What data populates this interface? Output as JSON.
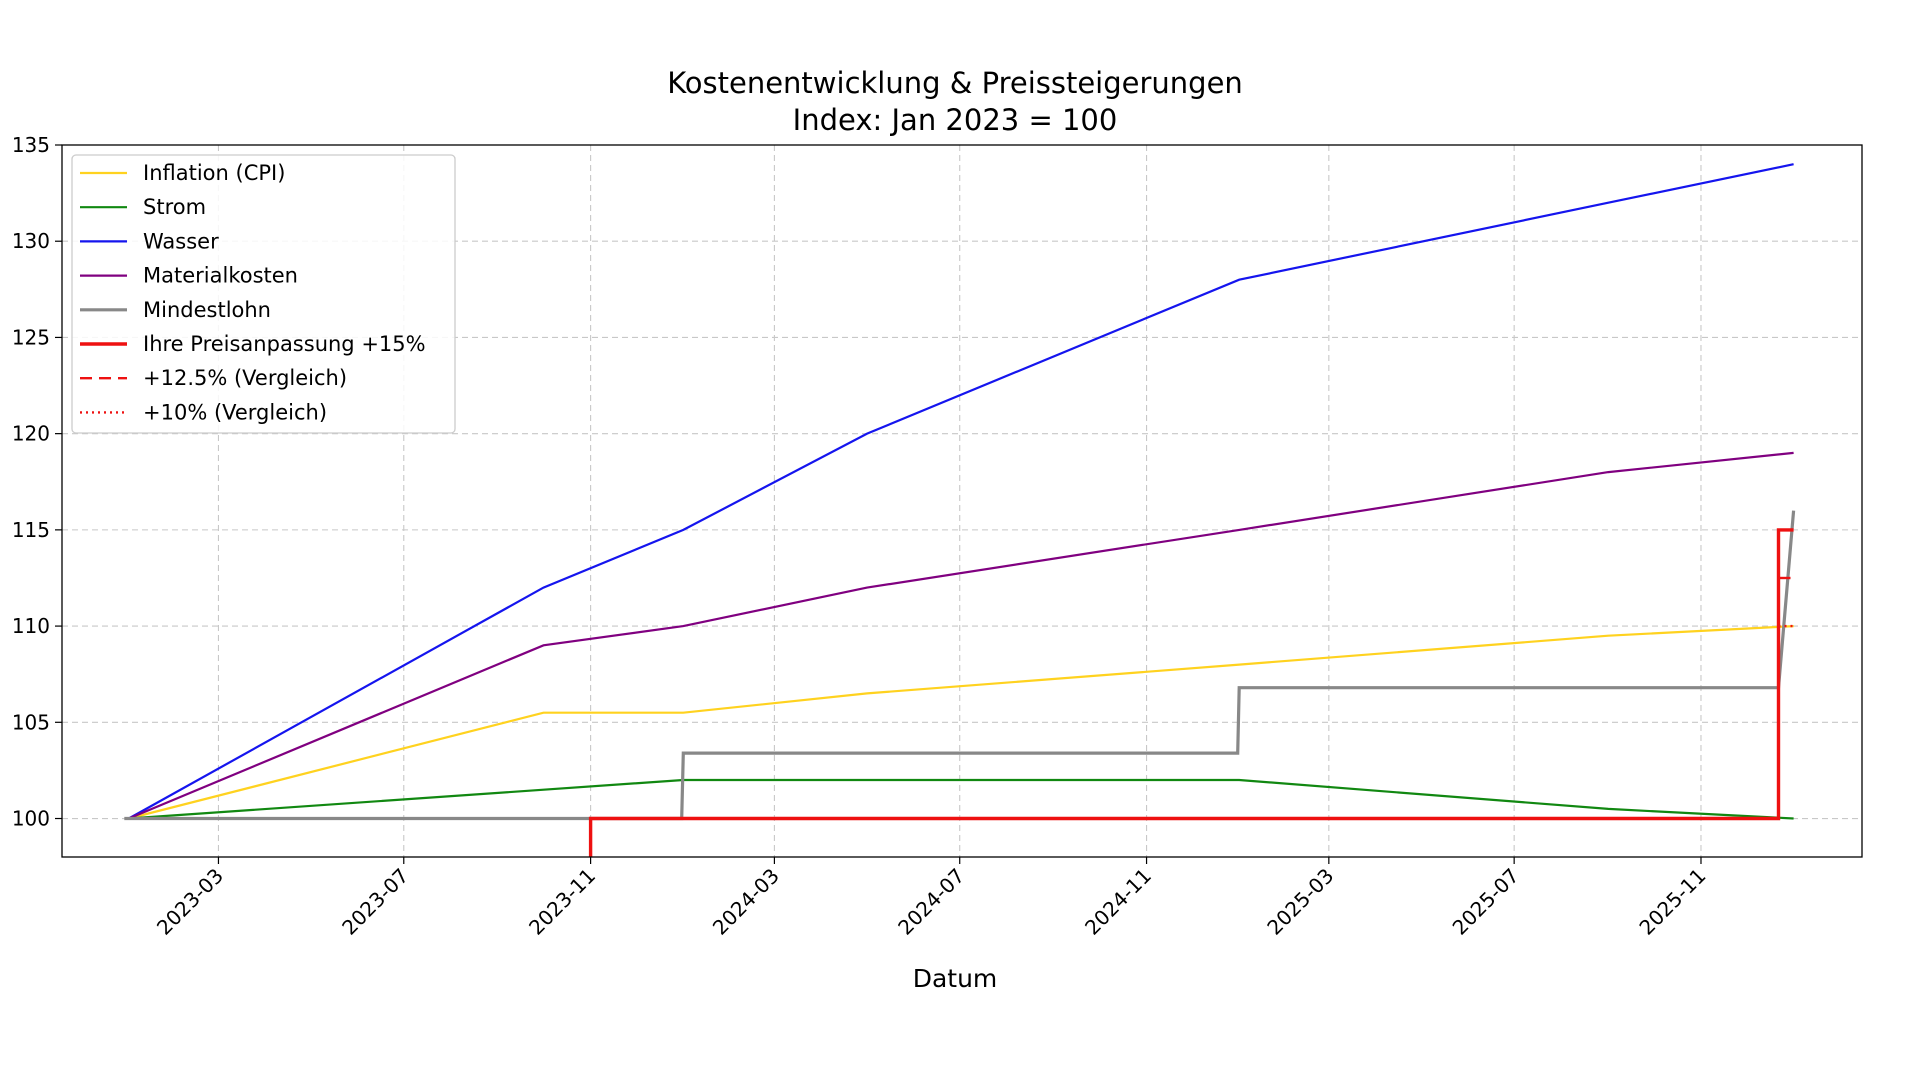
{
  "chart_data": {
    "type": "line",
    "title": "Kostenentwicklung & Preissteigerungen",
    "subtitle": "Index: Jan 2023 = 100",
    "xlabel": "Datum",
    "ylabel": "",
    "xlim": [
      "2022-11-18",
      "2026-02-15"
    ],
    "ylim": [
      98,
      135
    ],
    "grid": true,
    "grid_style": "dashed",
    "legend_position": "upper-left",
    "x_ticks": [
      "2023-03",
      "2023-07",
      "2023-11",
      "2024-03",
      "2024-07",
      "2024-11",
      "2025-03",
      "2025-07",
      "2025-11"
    ],
    "y_ticks": [
      100,
      105,
      110,
      115,
      120,
      125,
      130,
      135
    ],
    "series": [
      {
        "name": "Inflation (CPI)",
        "color": "#FFD21F",
        "width": 2.2,
        "dash": "solid",
        "points": [
          [
            "2023-01-01",
            100
          ],
          [
            "2023-10-01",
            105.5
          ],
          [
            "2024-01-01",
            105.5
          ],
          [
            "2024-05-01",
            106.5
          ],
          [
            "2025-01-01",
            108
          ],
          [
            "2025-09-01",
            109.5
          ],
          [
            "2026-01-01",
            110
          ]
        ]
      },
      {
        "name": "Strom",
        "color": "#118811",
        "width": 2.2,
        "dash": "solid",
        "points": [
          [
            "2023-01-01",
            100
          ],
          [
            "2024-01-01",
            102
          ],
          [
            "2025-01-01",
            102
          ],
          [
            "2025-09-01",
            100.5
          ],
          [
            "2026-01-01",
            100
          ]
        ]
      },
      {
        "name": "Wasser",
        "color": "#1515EE",
        "width": 2.2,
        "dash": "solid",
        "points": [
          [
            "2023-01-01",
            100
          ],
          [
            "2023-10-01",
            112
          ],
          [
            "2024-01-01",
            115
          ],
          [
            "2024-05-01",
            120
          ],
          [
            "2025-01-01",
            128
          ],
          [
            "2025-09-01",
            132
          ],
          [
            "2026-01-01",
            134
          ]
        ]
      },
      {
        "name": "Materialkosten",
        "color": "#800080",
        "width": 2.2,
        "dash": "solid",
        "points": [
          [
            "2023-01-01",
            100
          ],
          [
            "2023-10-01",
            109
          ],
          [
            "2024-01-01",
            110
          ],
          [
            "2024-05-01",
            112
          ],
          [
            "2025-01-01",
            115
          ],
          [
            "2025-09-01",
            118
          ],
          [
            "2026-01-01",
            119
          ]
        ]
      },
      {
        "name": "Mindestlohn",
        "color": "#888888",
        "width": 3.2,
        "dash": "solid",
        "points": [
          [
            "2022-12-29",
            100
          ],
          [
            "2023-12-31",
            100
          ],
          [
            "2024-01-01",
            103.4
          ],
          [
            "2024-12-31",
            103.4
          ],
          [
            "2025-01-01",
            106.8
          ],
          [
            "2025-12-22",
            106.8
          ],
          [
            "2026-01-01",
            116
          ]
        ]
      },
      {
        "name": "Ihre Preisanpassung +15%",
        "color": "#EE1111",
        "width": 3.4,
        "dash": "solid",
        "points": [
          [
            "2023-11-01",
            98
          ],
          [
            "2023-11-01",
            100
          ],
          [
            "2025-12-22",
            100
          ],
          [
            "2025-12-22",
            115
          ],
          [
            "2026-01-01",
            115
          ]
        ]
      },
      {
        "name": "+12.5% (Vergleich)",
        "color": "#EE1111",
        "width": 2.4,
        "dash": "dashed",
        "points": [
          [
            "2025-12-22",
            112.5
          ],
          [
            "2026-01-01",
            112.5
          ]
        ]
      },
      {
        "name": "+10% (Vergleich)",
        "color": "#EE1111",
        "width": 2.4,
        "dash": "dotted",
        "points": [
          [
            "2025-12-22",
            110
          ],
          [
            "2026-01-01",
            110
          ]
        ]
      }
    ]
  }
}
